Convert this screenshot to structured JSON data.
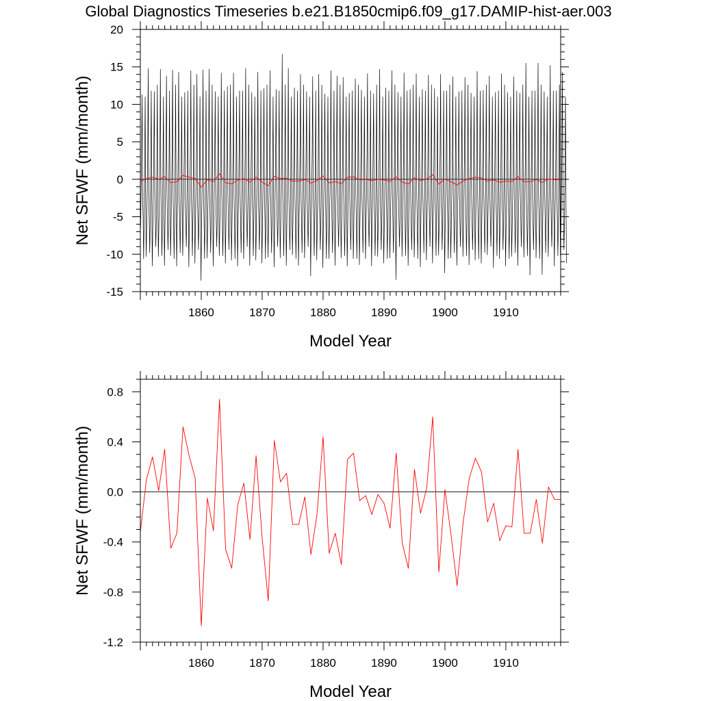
{
  "figure": {
    "title": "Global Diagnostics Timeseries b.e21.B1850cmip6.f09_g17.DAMIP-hist-aer.003"
  },
  "chart_data": [
    {
      "type": "line",
      "title": "Global Diagnostics Timeseries b.e21.B1850cmip6.f09_g17.DAMIP-hist-aer.003",
      "xlabel": "Model Year",
      "ylabel": "Net SFWF (mm/month)",
      "xlim": [
        1850,
        1919
      ],
      "ylim": [
        -15,
        20
      ],
      "x_ticks": [
        1860,
        1870,
        1880,
        1890,
        1900,
        1910
      ],
      "y_ticks": [
        -15,
        -10,
        -5,
        0,
        5,
        10,
        15,
        20
      ],
      "y_tick_labels": [
        "-15",
        "-10",
        "-5",
        "0",
        "5",
        "10",
        "15",
        "20"
      ],
      "reference_line": 0,
      "grid": false,
      "series": [
        {
          "color": "#000000",
          "resolution": "monthly",
          "monthly_cycle": [
            -6.5,
            -2.0,
            3.5,
            14.3,
            -2.0,
            -5.5,
            -9.8,
            -5.5,
            1.8,
            11.8,
            -3.0,
            -10.8
          ],
          "annual_max": [
            11.3,
            14.8,
            11.7,
            14.7,
            13.8,
            14.6,
            14.3,
            11.6,
            14.5,
            14.0,
            14.6,
            14.7,
            11.7,
            14.2,
            12.4,
            14.2,
            11.8,
            14.8,
            11.6,
            14.3,
            12.1,
            14.5,
            12.0,
            16.7,
            14.8,
            12.2,
            14.0,
            11.7,
            13.7,
            14.0,
            11.4,
            14.5,
            13.8,
            13.6,
            11.5,
            13.4,
            11.9,
            14.1,
            11.4,
            14.7,
            12.2,
            14.5,
            11.6,
            14.2,
            12.0,
            14.1,
            12.0,
            13.9,
            12.1,
            14.0,
            11.8,
            13.7,
            11.7,
            13.6,
            11.5,
            14.4,
            11.9,
            13.8,
            11.6,
            14.1,
            11.6,
            13.7,
            11.5,
            15.5,
            11.8,
            15.5,
            11.7,
            15.2,
            11.8,
            14.3
          ],
          "annual_min": [
            -10.3,
            -11.6,
            -10.3,
            -11.5,
            -10.2,
            -11.6,
            -10.2,
            -11.7,
            -11.2,
            -13.5,
            -10.5,
            -11.6,
            -10.2,
            -11.2,
            -10.8,
            -11.6,
            -10.6,
            -11.5,
            -10.8,
            -11.2,
            -10.4,
            -11.7,
            -10.5,
            -11.5,
            -10.1,
            -11.5,
            -10.5,
            -12.9,
            -10.8,
            -11.8,
            -10.6,
            -11.5,
            -10.5,
            -11.6,
            -10.6,
            -11.4,
            -10.6,
            -11.6,
            -10.3,
            -11.2,
            -10.5,
            -13.4,
            -10.3,
            -11.5,
            -10.4,
            -11.7,
            -10.8,
            -11.2,
            -10.1,
            -12.5,
            -10.5,
            -11.5,
            -10.3,
            -11.4,
            -10.8,
            -11.2,
            -10.1,
            -11.8,
            -10.6,
            -11.6,
            -10.3,
            -11.5,
            -10.4,
            -12.8,
            -10.5,
            -12.7,
            -10.3,
            -11.6,
            -10.2,
            -11.2
          ]
        },
        {
          "color": "#ff0000",
          "resolution": "annual",
          "x": [
            1850.0,
            1851.0,
            1852.0,
            1853.0,
            1854.0,
            1855.0,
            1856.0,
            1857.0,
            1858.0,
            1859.0,
            1860.0,
            1861.0,
            1862.0,
            1863.0,
            1864.0,
            1865.0,
            1866.0,
            1867.0,
            1868.0,
            1869.0,
            1870.0,
            1871.0,
            1872.0,
            1873.0,
            1874.0,
            1875.0,
            1876.0,
            1877.0,
            1878.0,
            1879.0,
            1880.0,
            1881.0,
            1882.0,
            1883.0,
            1884.0,
            1885.0,
            1886.0,
            1887.0,
            1888.0,
            1889.0,
            1890.0,
            1891.0,
            1892.0,
            1893.0,
            1894.0,
            1895.0,
            1896.0,
            1897.0,
            1898.0,
            1899.0,
            1900.0,
            1901.0,
            1902.0,
            1903.0,
            1904.0,
            1905.0,
            1906.0,
            1907.0,
            1908.0,
            1909.0,
            1910.0,
            1911.0,
            1912.0,
            1913.0,
            1914.0,
            1915.0,
            1916.0,
            1917.0,
            1918.0,
            1919.0
          ],
          "values": [
            -0.32,
            0.1,
            0.28,
            0.01,
            0.34,
            -0.45,
            -0.33,
            0.52,
            0.29,
            0.11,
            -1.07,
            -0.05,
            -0.31,
            0.74,
            -0.46,
            -0.61,
            -0.1,
            0.07,
            -0.38,
            0.29,
            -0.37,
            -0.87,
            0.41,
            0.08,
            0.15,
            -0.26,
            -0.26,
            -0.04,
            -0.5,
            -0.18,
            0.44,
            -0.49,
            -0.33,
            -0.58,
            0.26,
            0.31,
            -0.07,
            -0.03,
            -0.18,
            -0.02,
            -0.09,
            -0.29,
            0.31,
            -0.41,
            -0.61,
            0.18,
            -0.17,
            0.03,
            0.6,
            -0.64,
            0.02,
            -0.34,
            -0.75,
            -0.24,
            0.11,
            0.27,
            0.16,
            -0.24,
            -0.09,
            -0.39,
            -0.27,
            -0.28,
            0.34,
            -0.33,
            -0.33,
            -0.06,
            -0.41,
            0.04,
            -0.06,
            -0.06
          ]
        }
      ]
    },
    {
      "type": "line",
      "xlabel": "Model Year",
      "ylabel": "Net SFWF (mm/month)",
      "xlim": [
        1850,
        1919
      ],
      "ylim": [
        -1.2,
        0.9
      ],
      "x_ticks": [
        1860,
        1870,
        1880,
        1890,
        1900,
        1910
      ],
      "y_ticks": [
        -1.2,
        -0.8,
        -0.4,
        0.0,
        0.4,
        0.8
      ],
      "y_tick_labels": [
        "-1.2",
        "-0.8",
        "-0.4",
        "0.0",
        "0.4",
        "0.8"
      ],
      "reference_line": 0,
      "grid": false,
      "series": [
        {
          "color": "#ff0000",
          "resolution": "annual",
          "x": [
            1850.0,
            1851.0,
            1852.0,
            1853.0,
            1854.0,
            1855.0,
            1856.0,
            1857.0,
            1858.0,
            1859.0,
            1860.0,
            1861.0,
            1862.0,
            1863.0,
            1864.0,
            1865.0,
            1866.0,
            1867.0,
            1868.0,
            1869.0,
            1870.0,
            1871.0,
            1872.0,
            1873.0,
            1874.0,
            1875.0,
            1876.0,
            1877.0,
            1878.0,
            1879.0,
            1880.0,
            1881.0,
            1882.0,
            1883.0,
            1884.0,
            1885.0,
            1886.0,
            1887.0,
            1888.0,
            1889.0,
            1890.0,
            1891.0,
            1892.0,
            1893.0,
            1894.0,
            1895.0,
            1896.0,
            1897.0,
            1898.0,
            1899.0,
            1900.0,
            1901.0,
            1902.0,
            1903.0,
            1904.0,
            1905.0,
            1906.0,
            1907.0,
            1908.0,
            1909.0,
            1910.0,
            1911.0,
            1912.0,
            1913.0,
            1914.0,
            1915.0,
            1916.0,
            1917.0,
            1918.0,
            1919.0
          ],
          "values": [
            -0.32,
            0.1,
            0.28,
            0.01,
            0.34,
            -0.45,
            -0.33,
            0.52,
            0.29,
            0.11,
            -1.07,
            -0.05,
            -0.31,
            0.74,
            -0.46,
            -0.61,
            -0.1,
            0.07,
            -0.38,
            0.29,
            -0.37,
            -0.87,
            0.41,
            0.08,
            0.15,
            -0.26,
            -0.26,
            -0.04,
            -0.5,
            -0.18,
            0.44,
            -0.49,
            -0.33,
            -0.58,
            0.26,
            0.31,
            -0.07,
            -0.03,
            -0.18,
            -0.02,
            -0.09,
            -0.29,
            0.31,
            -0.41,
            -0.61,
            0.18,
            -0.17,
            0.03,
            0.6,
            -0.64,
            0.02,
            -0.34,
            -0.75,
            -0.24,
            0.11,
            0.27,
            0.16,
            -0.24,
            -0.09,
            -0.39,
            -0.27,
            -0.28,
            0.34,
            -0.33,
            -0.33,
            -0.06,
            -0.41,
            0.04,
            -0.06,
            -0.06
          ]
        }
      ]
    }
  ]
}
